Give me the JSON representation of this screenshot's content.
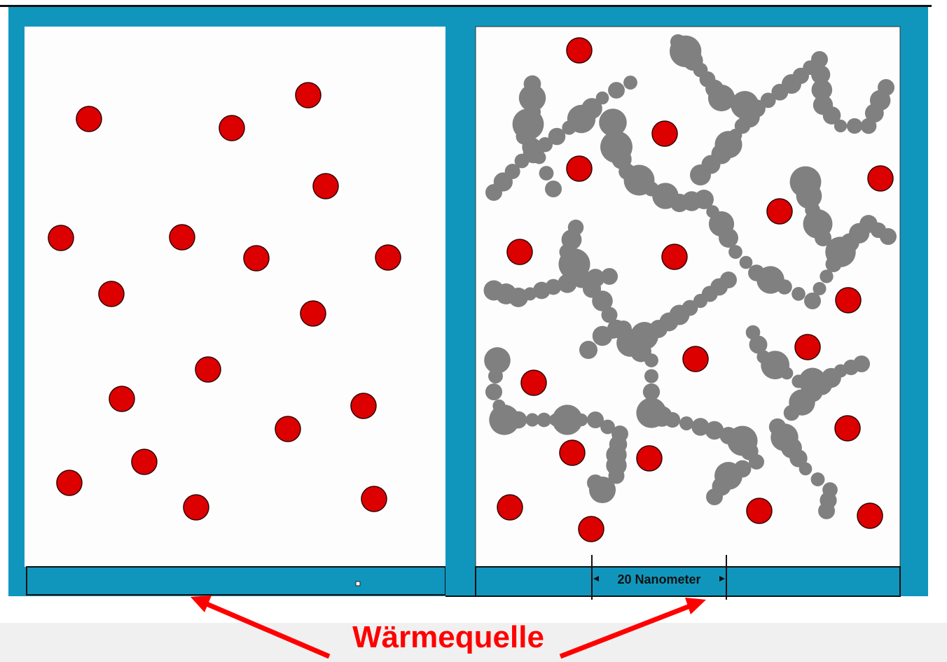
{
  "scale_bar": {
    "label": "20 Nanometer"
  },
  "annotation": {
    "label": "Wärmequelle"
  }
}
